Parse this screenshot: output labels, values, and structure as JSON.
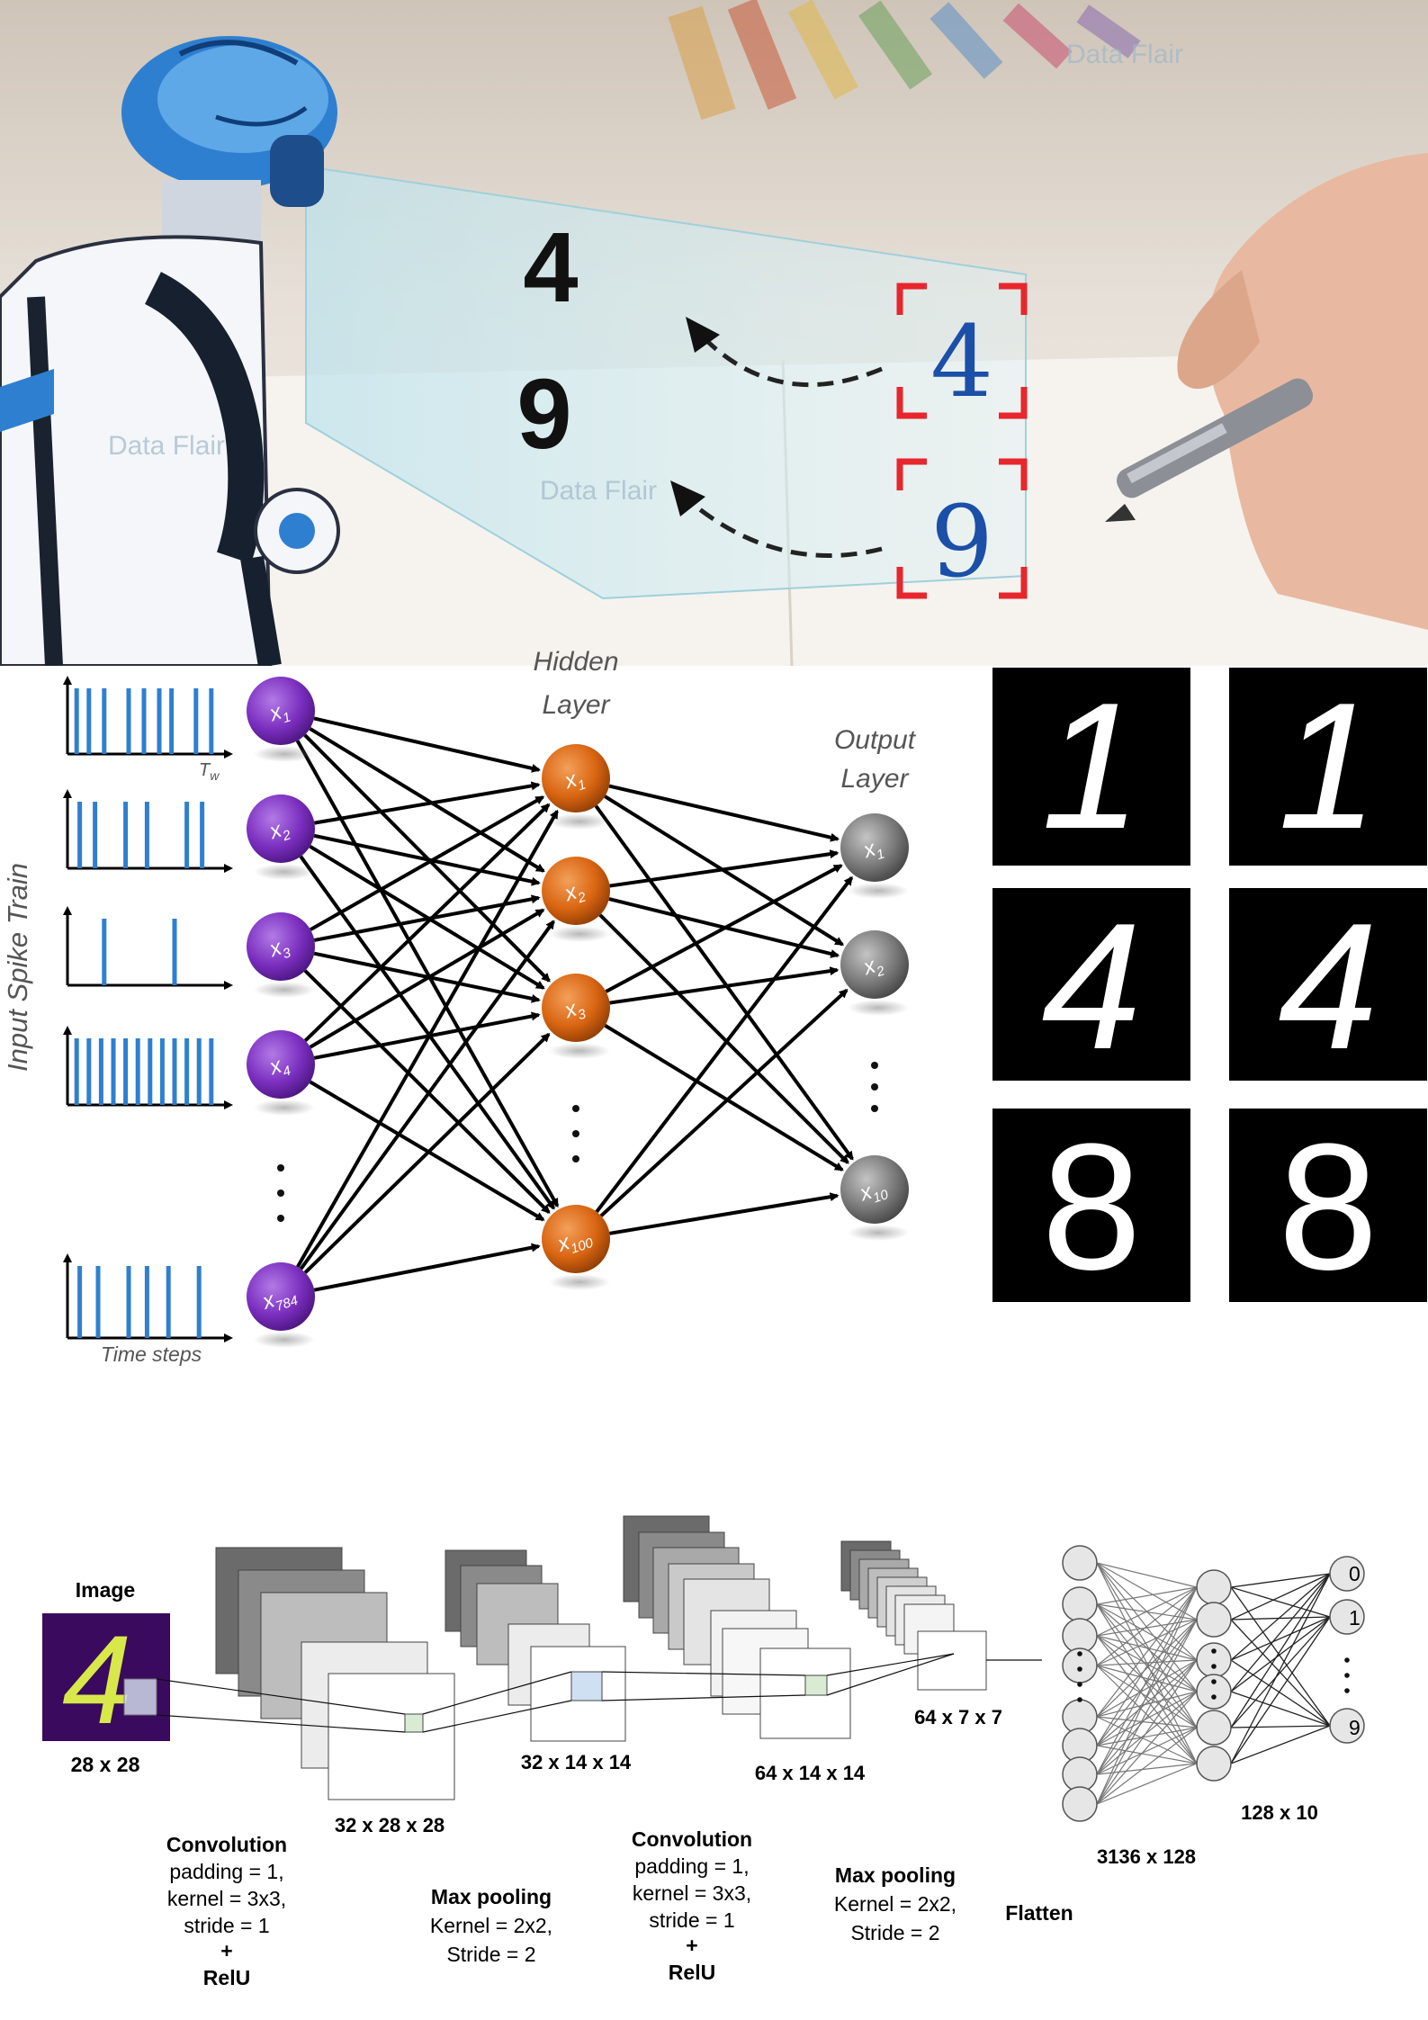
{
  "hero": {
    "predicted_digits": [
      "4",
      "9"
    ],
    "handwritten_digits": [
      "4",
      "9"
    ],
    "watermark": "Data Flair",
    "colors": {
      "bracket": "#e8262d",
      "ink": "#1b4fa8",
      "robot_body": "#ffffff",
      "robot_blue": "#2f7fd0"
    }
  },
  "snn": {
    "side_label": "Input Spike Train",
    "time_window_label": "T",
    "time_window_sub": "w",
    "time_axis_label": "Time steps",
    "hidden_title_line1": "Hidden",
    "hidden_title_line2": "Layer",
    "output_title_line1": "Output",
    "output_title_line2": "Layer",
    "input_nodes": [
      {
        "base": "x",
        "sub": "1"
      },
      {
        "base": "x",
        "sub": "2"
      },
      {
        "base": "x",
        "sub": "3"
      },
      {
        "base": "x",
        "sub": "4"
      },
      {
        "base": "x",
        "sub": "784"
      }
    ],
    "hidden_nodes": [
      {
        "base": "x",
        "sub": "1"
      },
      {
        "base": "x",
        "sub": "2"
      },
      {
        "base": "x",
        "sub": "3"
      },
      {
        "base": "x",
        "sub": "100"
      }
    ],
    "output_nodes": [
      {
        "base": "x",
        "sub": "1"
      },
      {
        "base": "x",
        "sub": "2"
      },
      {
        "base": "x",
        "sub": "10"
      }
    ],
    "spike_trains": [
      [
        0.06,
        0.14,
        0.24,
        0.4,
        0.5,
        0.6,
        0.68,
        0.84,
        0.94
      ],
      [
        0.08,
        0.18,
        0.38,
        0.52,
        0.78,
        0.88
      ],
      [
        0.24,
        0.7
      ],
      [
        0.06,
        0.14,
        0.22,
        0.3,
        0.38,
        0.46,
        0.54,
        0.62,
        0.7,
        0.78,
        0.86,
        0.94
      ],
      [
        0.08,
        0.2,
        0.4,
        0.52,
        0.66,
        0.86
      ]
    ],
    "colors": {
      "input": "#7b2fbf",
      "hidden": "#d96512",
      "output": "#7a7a7a",
      "spike": "#2f7fd0"
    }
  },
  "mnist_samples": {
    "digits": [
      "1",
      "1",
      "4",
      "4",
      "8",
      "8"
    ]
  },
  "cnn": {
    "image_title": "Image",
    "image_digit": "4",
    "image_size": "28 x 28",
    "dims": {
      "conv1": "32 x 28 x 28",
      "pool1": "32 x 14 x 14",
      "conv2": "64 x 14 x 14",
      "pool2": "64 x 7 x 7",
      "fc1": "3136 x 128",
      "fc2": "128 x 10"
    },
    "captions": {
      "conv1": [
        "Convolution",
        "padding = 1,",
        "kernel = 3x3,",
        "stride = 1",
        "+",
        "RelU"
      ],
      "pool1": [
        "Max pooling",
        "Kernel = 2x2,",
        "Stride = 2"
      ],
      "conv2": [
        "Convolution",
        "padding = 1,",
        "kernel = 3x3,",
        "stride = 1",
        "+",
        "RelU"
      ],
      "pool2": [
        "Max pooling",
        "Kernel = 2x2,",
        "Stride = 2"
      ],
      "flatten": [
        "Flatten"
      ]
    },
    "outputs": [
      "0",
      "1",
      "9"
    ],
    "colors": {
      "image_bg": "#3a0a5e",
      "image_digit": "#d8e84a",
      "patch": "#d9ecd3",
      "patch_blue": "#cfe0f2"
    }
  }
}
